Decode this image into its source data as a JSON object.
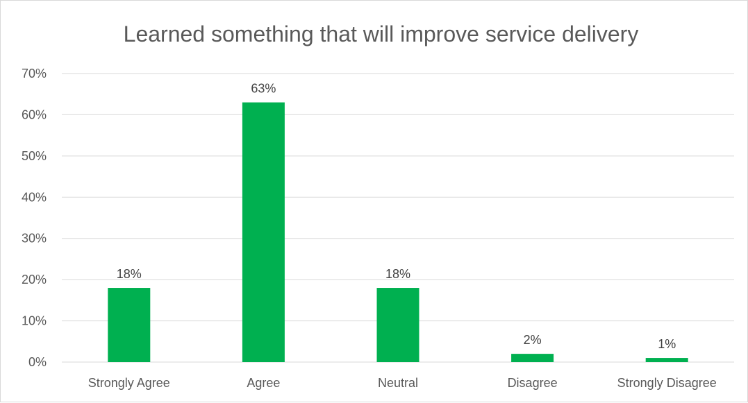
{
  "chart_data": {
    "type": "bar",
    "title": "Learned something that will improve service delivery",
    "categories": [
      "Strongly Agree",
      "Agree",
      "Neutral",
      "Disagree",
      "Strongly Disagree"
    ],
    "values": [
      18,
      63,
      18,
      2,
      1
    ],
    "value_labels": [
      "18%",
      "63%",
      "18%",
      "2%",
      "1%"
    ],
    "ylim": [
      0,
      70
    ],
    "y_ticks": [
      0,
      10,
      20,
      30,
      40,
      50,
      60,
      70
    ],
    "y_tick_labels": [
      "0%",
      "10%",
      "20%",
      "30%",
      "40%",
      "50%",
      "60%",
      "70%"
    ],
    "xlabel": "",
    "ylabel": "",
    "grid": true,
    "bar_color": "#00b050",
    "grid_color": "#d9d9d9"
  }
}
